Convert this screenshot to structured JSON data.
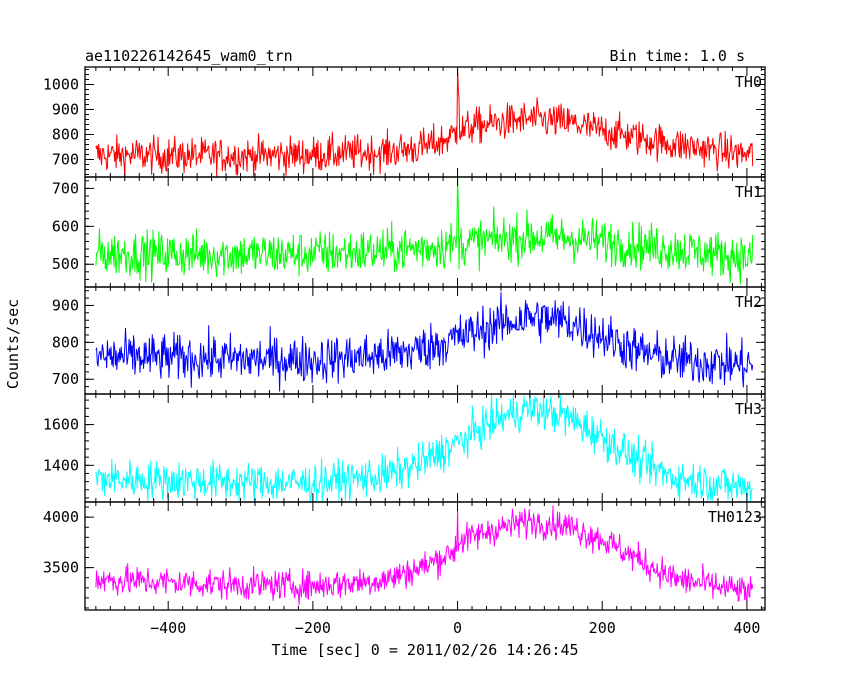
{
  "chart_data": {
    "type": "line",
    "title": "ae110226142645_wam0_trn",
    "subtitle": "Bin time: 1.0 s",
    "xlabel": "Time [sec] 0 = 2011/02/26 14:26:45",
    "ylabel": "Counts/sec",
    "xlim": [
      -515,
      425
    ],
    "x_ticks": [
      -400,
      -200,
      0,
      200,
      400
    ],
    "x_tick_labels": [
      "−400",
      "−200",
      "0",
      "200",
      "400"
    ],
    "grid": false,
    "series": [
      {
        "name": "TH0",
        "color": "#ff0000",
        "ylim": [
          630,
          1070
        ],
        "y_ticks": [
          700,
          800,
          900,
          1000
        ],
        "y_tick_labels": [
          "700",
          "800",
          "900",
          "1000"
        ],
        "profile": {
          "x": [
            -500,
            -300,
            -200,
            -100,
            -50,
            -20,
            -5,
            0,
            5,
            20,
            60,
            100,
            150,
            200,
            300,
            400
          ],
          "y": [
            718,
            715,
            720,
            730,
            748,
            775,
            800,
            820,
            812,
            832,
            848,
            862,
            850,
            815,
            760,
            720
          ]
        },
        "noise": 36,
        "spikes": [
          {
            "x": 0,
            "y": 1065
          },
          {
            "x": 1,
            "y": 980
          },
          {
            "x": 2,
            "y": 945
          }
        ]
      },
      {
        "name": "TH1",
        "color": "#00ff00",
        "ylim": [
          440,
          730
        ],
        "y_ticks": [
          500,
          600,
          700
        ],
        "y_tick_labels": [
          "500",
          "600",
          "700"
        ],
        "profile": {
          "x": [
            -500,
            -300,
            -200,
            -100,
            -50,
            0,
            50,
            100,
            150,
            200,
            300,
            400
          ],
          "y": [
            528,
            526,
            528,
            535,
            543,
            552,
            565,
            572,
            570,
            560,
            540,
            518
          ]
        },
        "noise": 30,
        "spikes": [
          {
            "x": 0,
            "y": 730
          },
          {
            "x": 1,
            "y": 660
          }
        ]
      },
      {
        "name": "TH2",
        "color": "#0000ff",
        "ylim": [
          660,
          950
        ],
        "y_ticks": [
          700,
          800,
          900
        ],
        "y_tick_labels": [
          "700",
          "800",
          "900"
        ],
        "profile": {
          "x": [
            -500,
            -300,
            -200,
            -100,
            -50,
            0,
            50,
            100,
            150,
            200,
            250,
            300,
            400
          ],
          "y": [
            762,
            755,
            752,
            765,
            782,
            812,
            845,
            868,
            858,
            818,
            775,
            752,
            738
          ]
        },
        "noise": 32,
        "spikes": []
      },
      {
        "name": "TH3",
        "color": "#00ffff",
        "ylim": [
          1220,
          1750
        ],
        "y_ticks": [
          1400,
          1600
        ],
        "y_tick_labels": [
          "1400",
          "1600"
        ],
        "profile": {
          "x": [
            -500,
            -300,
            -200,
            -100,
            -50,
            0,
            50,
            100,
            150,
            200,
            250,
            300,
            400
          ],
          "y": [
            1335,
            1318,
            1312,
            1350,
            1410,
            1510,
            1620,
            1680,
            1640,
            1540,
            1420,
            1340,
            1290
          ]
        },
        "noise": 48,
        "spikes": []
      },
      {
        "name": "TH0123",
        "color": "#ff00ff",
        "ylim": [
          3080,
          4150
        ],
        "y_ticks": [
          3500,
          4000
        ],
        "y_tick_labels": [
          "3500",
          "4000"
        ],
        "profile": {
          "x": [
            -500,
            -300,
            -200,
            -100,
            -50,
            -5,
            0,
            50,
            100,
            150,
            200,
            250,
            300,
            400
          ],
          "y": [
            3380,
            3330,
            3320,
            3380,
            3500,
            3660,
            3750,
            3880,
            3960,
            3920,
            3780,
            3580,
            3390,
            3260
          ]
        },
        "noise": 75,
        "spikes": [
          {
            "x": 0,
            "y": 4070
          }
        ]
      }
    ]
  }
}
